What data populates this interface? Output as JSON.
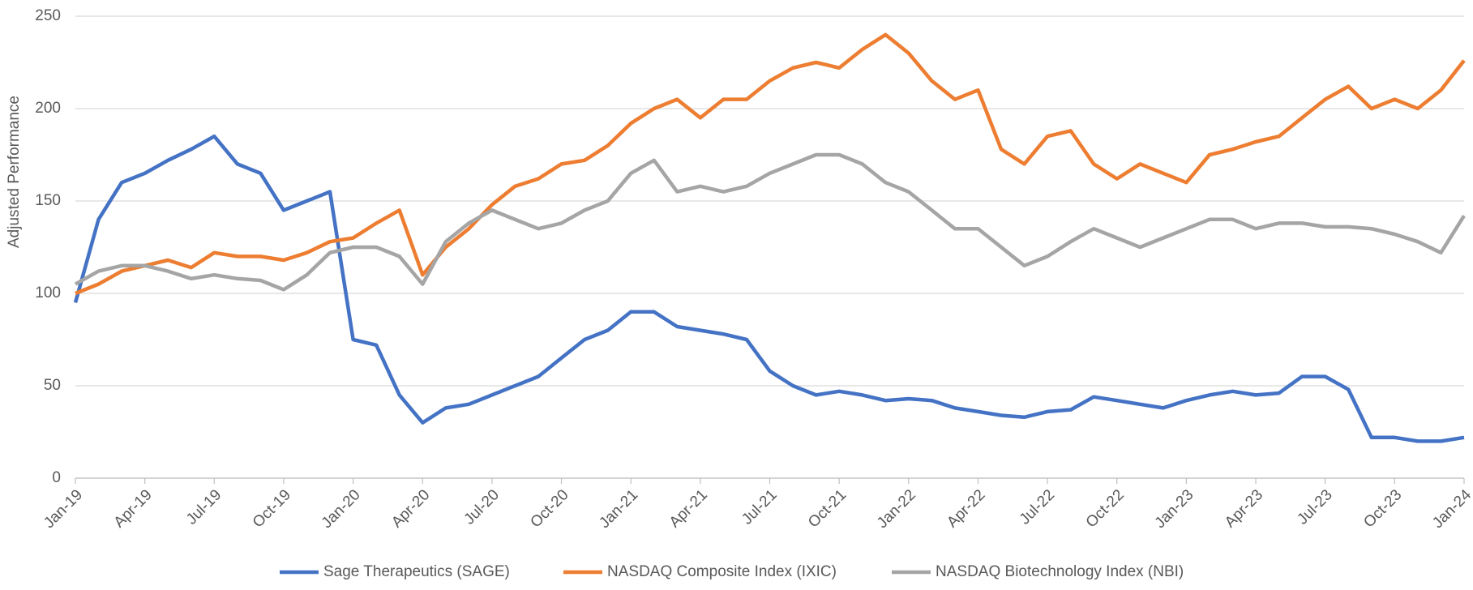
{
  "chart_data": {
    "type": "line",
    "y_label": "Adjusted Performance",
    "x": [
      "Jan-19",
      "Feb-19",
      "Mar-19",
      "Apr-19",
      "May-19",
      "Jun-19",
      "Jul-19",
      "Aug-19",
      "Sep-19",
      "Oct-19",
      "Nov-19",
      "Dec-19",
      "Jan-20",
      "Feb-20",
      "Mar-20",
      "Apr-20",
      "May-20",
      "Jun-20",
      "Jul-20",
      "Aug-20",
      "Sep-20",
      "Oct-20",
      "Nov-20",
      "Dec-20",
      "Jan-21",
      "Feb-21",
      "Mar-21",
      "Apr-21",
      "May-21",
      "Jun-21",
      "Jul-21",
      "Aug-21",
      "Sep-21",
      "Oct-21",
      "Nov-21",
      "Dec-21",
      "Jan-22",
      "Feb-22",
      "Mar-22",
      "Apr-22",
      "May-22",
      "Jun-22",
      "Jul-22",
      "Aug-22",
      "Sep-22",
      "Oct-22",
      "Nov-22",
      "Dec-22",
      "Jan-23",
      "Feb-23",
      "Mar-23",
      "Apr-23",
      "May-23",
      "Jun-23",
      "Jul-23",
      "Aug-23",
      "Sep-23",
      "Oct-23",
      "Nov-23",
      "Dec-23",
      "Jan-24"
    ],
    "xticks": [
      "Jan-19",
      "Apr-19",
      "Jul-19",
      "Oct-19",
      "Jan-20",
      "Apr-20",
      "Jul-20",
      "Oct-20",
      "Jan-21",
      "Apr-21",
      "Jul-21",
      "Oct-21",
      "Jan-22",
      "Apr-22",
      "Jul-22",
      "Oct-22",
      "Jan-23",
      "Apr-23",
      "Jul-23",
      "Oct-23",
      "Jan-24"
    ],
    "ylim": [
      0,
      250
    ],
    "yticks": [
      0,
      50,
      100,
      150,
      200,
      250
    ],
    "grid": true,
    "legend": "bottom",
    "series": [
      {
        "name": "Sage Therapeutics (SAGE)",
        "color": "#4472c4",
        "values": [
          95,
          140,
          160,
          165,
          172,
          178,
          185,
          170,
          165,
          145,
          150,
          155,
          75,
          72,
          45,
          30,
          38,
          40,
          45,
          50,
          55,
          65,
          75,
          80,
          90,
          90,
          82,
          80,
          78,
          75,
          58,
          50,
          45,
          47,
          45,
          42,
          43,
          42,
          38,
          36,
          34,
          33,
          36,
          37,
          44,
          42,
          40,
          38,
          42,
          45,
          47,
          45,
          46,
          55,
          55,
          48,
          22,
          22,
          20,
          20,
          22
        ]
      },
      {
        "name": "NASDAQ Composite Index (IXIC)",
        "color": "#ed7d31",
        "values": [
          100,
          105,
          112,
          115,
          118,
          114,
          122,
          120,
          120,
          118,
          122,
          128,
          130,
          138,
          145,
          110,
          125,
          135,
          148,
          158,
          162,
          170,
          172,
          180,
          192,
          200,
          205,
          195,
          205,
          205,
          215,
          222,
          225,
          222,
          232,
          240,
          230,
          215,
          205,
          210,
          178,
          170,
          185,
          188,
          170,
          162,
          170,
          165,
          160,
          175,
          178,
          182,
          185,
          195,
          205,
          212,
          200,
          205,
          200,
          210,
          226
        ]
      },
      {
        "name": "NASDAQ Biotechnology Index (NBI)",
        "color": "#a5a5a5",
        "values": [
          105,
          112,
          115,
          115,
          112,
          108,
          110,
          108,
          107,
          102,
          110,
          122,
          125,
          125,
          120,
          105,
          128,
          138,
          145,
          140,
          135,
          138,
          145,
          150,
          165,
          172,
          155,
          158,
          155,
          158,
          165,
          170,
          175,
          175,
          170,
          160,
          155,
          145,
          135,
          135,
          125,
          115,
          120,
          128,
          135,
          130,
          125,
          130,
          135,
          140,
          140,
          135,
          138,
          138,
          136,
          136,
          135,
          132,
          128,
          122,
          142
        ]
      }
    ]
  }
}
